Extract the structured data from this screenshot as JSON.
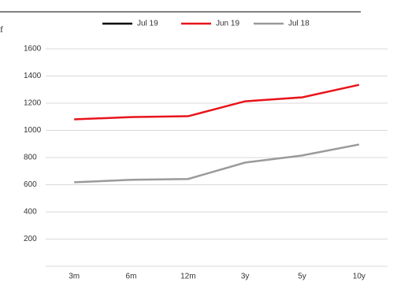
{
  "chart_data": {
    "type": "line",
    "annotations": [
      "f"
    ],
    "categories": [
      "3m",
      "6m",
      "12m",
      "3y",
      "5y",
      "10y"
    ],
    "series": [
      {
        "name": "Jul 19",
        "color": "#000000",
        "values": [
          null,
          null,
          null,
          null,
          null,
          null
        ]
      },
      {
        "name": "Jun 19",
        "color": "#e8141b",
        "values": [
          1081,
          1098,
          1104,
          1214,
          1243,
          1335
        ]
      },
      {
        "name": "Jul 18",
        "color": "#9a9a9a",
        "values": [
          618,
          636,
          642,
          763,
          815,
          896
        ]
      }
    ],
    "ylim": [
      0,
      1600
    ],
    "yticks": [
      200,
      400,
      600,
      800,
      1000,
      1200,
      1400,
      1600
    ],
    "grid": true,
    "legend": "top"
  }
}
